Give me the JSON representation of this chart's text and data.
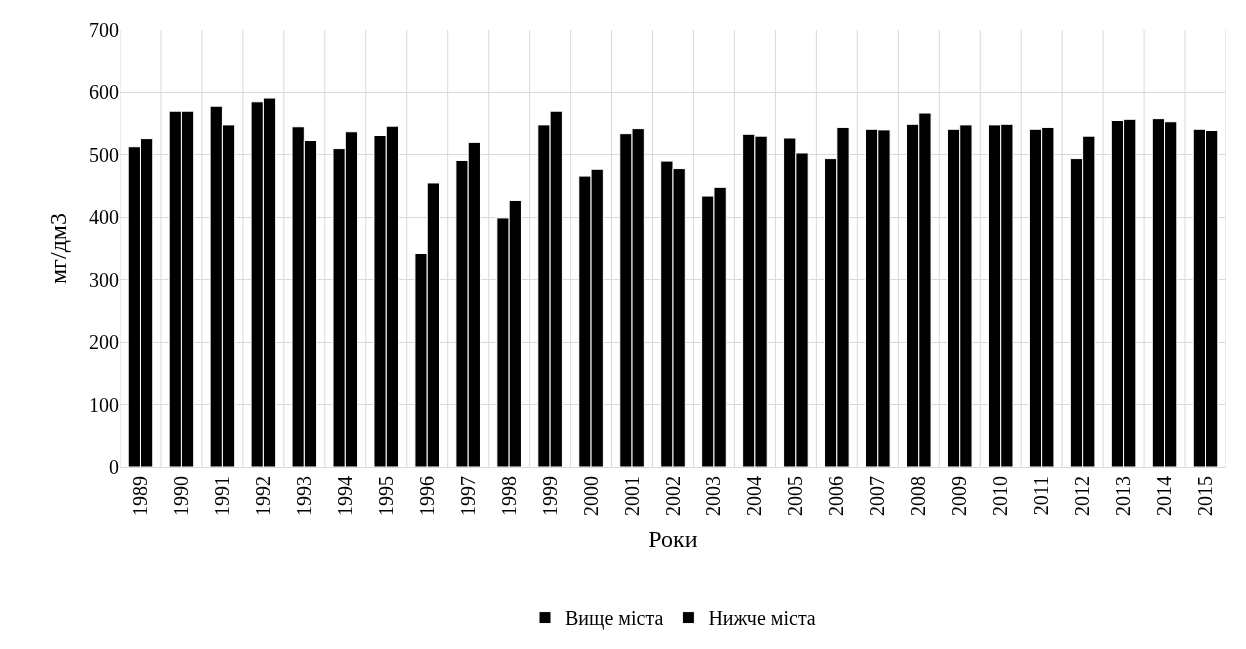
{
  "chart_data": {
    "type": "bar",
    "xlabel": "Роки",
    "ylabel": "мг/дм3",
    "categories": [
      "1989",
      "1990",
      "1991",
      "1992",
      "1993",
      "1994",
      "1995",
      "1996",
      "1997",
      "1998",
      "1999",
      "2000",
      "2001",
      "2002",
      "2003",
      "2004",
      "2005",
      "2006",
      "2007",
      "2008",
      "2009",
      "2010",
      "2011",
      "2012",
      "2013",
      "2014",
      "2015"
    ],
    "series": [
      {
        "name": "Вище міста",
        "color": "#000000",
        "values": [
          513,
          570,
          578,
          585,
          545,
          510,
          531,
          342,
          491,
          399,
          548,
          466,
          534,
          490,
          434,
          533,
          527,
          494,
          541,
          549,
          541,
          548,
          541,
          494,
          555,
          558,
          541
        ]
      },
      {
        "name": "Нижче міста",
        "color": "#000000",
        "values": [
          526,
          570,
          548,
          591,
          523,
          537,
          546,
          455,
          520,
          427,
          570,
          477,
          542,
          478,
          448,
          530,
          503,
          544,
          540,
          567,
          548,
          549,
          544,
          530,
          557,
          553,
          539
        ]
      }
    ],
    "ylim": [
      0,
      700
    ],
    "yticks": [
      0,
      100,
      200,
      300,
      400,
      500,
      600,
      700
    ],
    "grid": true,
    "legend": "bottom"
  }
}
